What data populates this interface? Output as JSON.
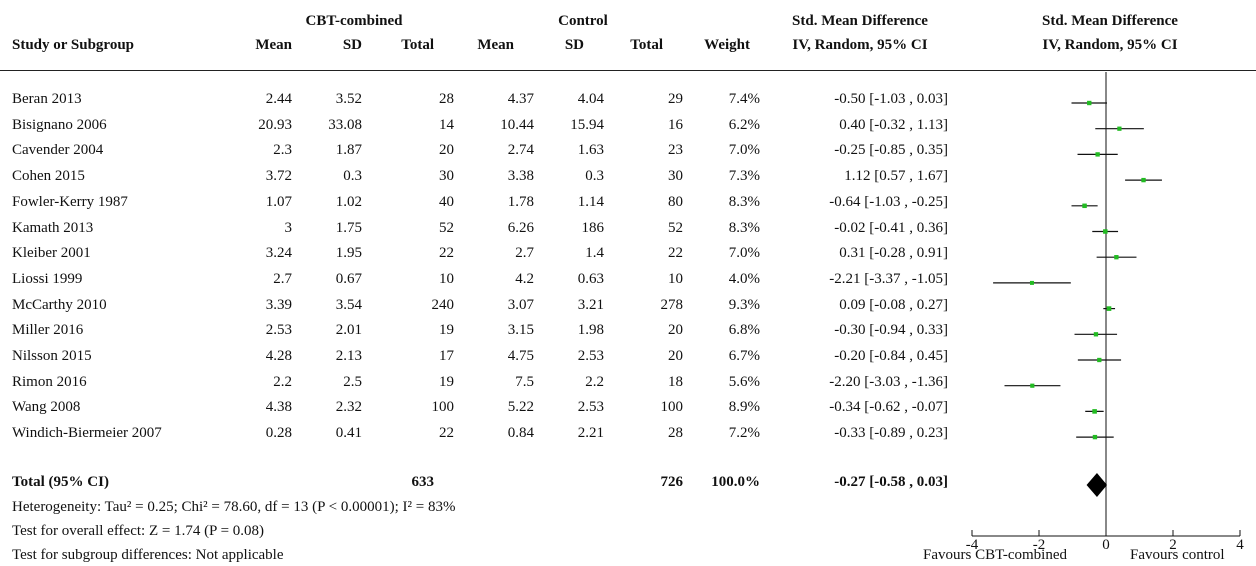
{
  "header": {
    "group1": "CBT-combined",
    "group2": "Control",
    "smd_title": "Std. Mean Difference",
    "smd_subtitle": "IV, Random, 95% CI",
    "plot_title": "Std. Mean Difference",
    "plot_subtitle": "IV, Random, 95% CI",
    "col_study": "Study or Subgroup",
    "col_mean1": "Mean",
    "col_sd1": "SD",
    "col_total1": "Total",
    "col_mean2": "Mean",
    "col_sd2": "SD",
    "col_total2": "Total",
    "col_weight": "Weight"
  },
  "studies": [
    {
      "name": "Beran 2013",
      "mean1": "2.44",
      "sd1": "3.52",
      "n1": "28",
      "mean2": "4.37",
      "sd2": "4.04",
      "n2": "29",
      "weight": "7.4%",
      "ci": "-0.50 [-1.03 , 0.03]"
    },
    {
      "name": "Bisignano 2006",
      "mean1": "20.93",
      "sd1": "33.08",
      "n1": "14",
      "mean2": "10.44",
      "sd2": "15.94",
      "n2": "16",
      "weight": "6.2%",
      "ci": "0.40 [-0.32 , 1.13]"
    },
    {
      "name": "Cavender 2004",
      "mean1": "2.3",
      "sd1": "1.87",
      "n1": "20",
      "mean2": "2.74",
      "sd2": "1.63",
      "n2": "23",
      "weight": "7.0%",
      "ci": "-0.25 [-0.85 , 0.35]"
    },
    {
      "name": "Cohen 2015",
      "mean1": "3.72",
      "sd1": "0.3",
      "n1": "30",
      "mean2": "3.38",
      "sd2": "0.3",
      "n2": "30",
      "weight": "7.3%",
      "ci": "1.12 [0.57 , 1.67]"
    },
    {
      "name": "Fowler-Kerry 1987",
      "mean1": "1.07",
      "sd1": "1.02",
      "n1": "40",
      "mean2": "1.78",
      "sd2": "1.14",
      "n2": "80",
      "weight": "8.3%",
      "ci": "-0.64 [-1.03 , -0.25]"
    },
    {
      "name": "Kamath 2013",
      "mean1": "3",
      "sd1": "1.75",
      "n1": "52",
      "mean2": "6.26",
      "sd2": "186",
      "n2": "52",
      "weight": "8.3%",
      "ci": "-0.02 [-0.41 , 0.36]"
    },
    {
      "name": "Kleiber 2001",
      "mean1": "3.24",
      "sd1": "1.95",
      "n1": "22",
      "mean2": "2.7",
      "sd2": "1.4",
      "n2": "22",
      "weight": "7.0%",
      "ci": "0.31 [-0.28 , 0.91]"
    },
    {
      "name": "Liossi 1999",
      "mean1": "2.7",
      "sd1": "0.67",
      "n1": "10",
      "mean2": "4.2",
      "sd2": "0.63",
      "n2": "10",
      "weight": "4.0%",
      "ci": "-2.21 [-3.37 , -1.05]"
    },
    {
      "name": "McCarthy 2010",
      "mean1": "3.39",
      "sd1": "3.54",
      "n1": "240",
      "mean2": "3.07",
      "sd2": "3.21",
      "n2": "278",
      "weight": "9.3%",
      "ci": "0.09 [-0.08 , 0.27]"
    },
    {
      "name": "Miller 2016",
      "mean1": "2.53",
      "sd1": "2.01",
      "n1": "19",
      "mean2": "3.15",
      "sd2": "1.98",
      "n2": "20",
      "weight": "6.8%",
      "ci": "-0.30 [-0.94 , 0.33]"
    },
    {
      "name": "Nilsson 2015",
      "mean1": "4.28",
      "sd1": "2.13",
      "n1": "17",
      "mean2": "4.75",
      "sd2": "2.53",
      "n2": "20",
      "weight": "6.7%",
      "ci": "-0.20 [-0.84 , 0.45]"
    },
    {
      "name": "Rimon 2016",
      "mean1": "2.2",
      "sd1": "2.5",
      "n1": "19",
      "mean2": "7.5",
      "sd2": "2.2",
      "n2": "18",
      "weight": "5.6%",
      "ci": "-2.20 [-3.03 , -1.36]"
    },
    {
      "name": "Wang 2008",
      "mean1": "4.38",
      "sd1": "2.32",
      "n1": "100",
      "mean2": "5.22",
      "sd2": "2.53",
      "n2": "100",
      "weight": "8.9%",
      "ci": "-0.34 [-0.62 , -0.07]"
    },
    {
      "name": "Windich-Biermeier 2007",
      "mean1": "0.28",
      "sd1": "0.41",
      "n1": "22",
      "mean2": "0.84",
      "sd2": "2.21",
      "n2": "28",
      "weight": "7.2%",
      "ci": "-0.33 [-0.89 , 0.23]"
    }
  ],
  "total": {
    "label": "Total (95% CI)",
    "n1": "633",
    "n2": "726",
    "weight": "100.0%",
    "ci": "-0.27 [-0.58 , 0.03]"
  },
  "footer": {
    "heterogeneity": "Heterogeneity: Tau² = 0.25; Chi² = 78.60, df = 13 (P < 0.00001); I² = 83%",
    "overall": "Test for overall effect: Z = 1.74 (P = 0.08)",
    "subgroup": "Test for subgroup differences: Not applicable"
  },
  "axis": {
    "favours_left": "Favours CBT-combined",
    "favours_right": "Favours control"
  },
  "chart_data": {
    "type": "forest",
    "x_range": [
      -4,
      4
    ],
    "x_ticks": [
      -4,
      -2,
      0,
      2,
      4
    ],
    "tick_labels": [
      "-4",
      "-2",
      "0",
      "2",
      "4"
    ],
    "marker_color": "#22bb22",
    "diamond_color": "#000000",
    "points": [
      {
        "est": -0.5,
        "lo": -1.03,
        "hi": 0.03,
        "weight": 7.4
      },
      {
        "est": 0.4,
        "lo": -0.32,
        "hi": 1.13,
        "weight": 6.2
      },
      {
        "est": -0.25,
        "lo": -0.85,
        "hi": 0.35,
        "weight": 7.0
      },
      {
        "est": 1.12,
        "lo": 0.57,
        "hi": 1.67,
        "weight": 7.3
      },
      {
        "est": -0.64,
        "lo": -1.03,
        "hi": -0.25,
        "weight": 8.3
      },
      {
        "est": -0.02,
        "lo": -0.41,
        "hi": 0.36,
        "weight": 8.3
      },
      {
        "est": 0.31,
        "lo": -0.28,
        "hi": 0.91,
        "weight": 7.0
      },
      {
        "est": -2.21,
        "lo": -3.37,
        "hi": -1.05,
        "weight": 4.0
      },
      {
        "est": 0.09,
        "lo": -0.08,
        "hi": 0.27,
        "weight": 9.3
      },
      {
        "est": -0.3,
        "lo": -0.94,
        "hi": 0.33,
        "weight": 6.8
      },
      {
        "est": -0.2,
        "lo": -0.84,
        "hi": 0.45,
        "weight": 6.7
      },
      {
        "est": -2.2,
        "lo": -3.03,
        "hi": -1.36,
        "weight": 5.6
      },
      {
        "est": -0.34,
        "lo": -0.62,
        "hi": -0.07,
        "weight": 8.9
      },
      {
        "est": -0.33,
        "lo": -0.89,
        "hi": 0.23,
        "weight": 7.2
      }
    ],
    "pooled": {
      "est": -0.27,
      "lo": -0.58,
      "hi": 0.03
    }
  }
}
